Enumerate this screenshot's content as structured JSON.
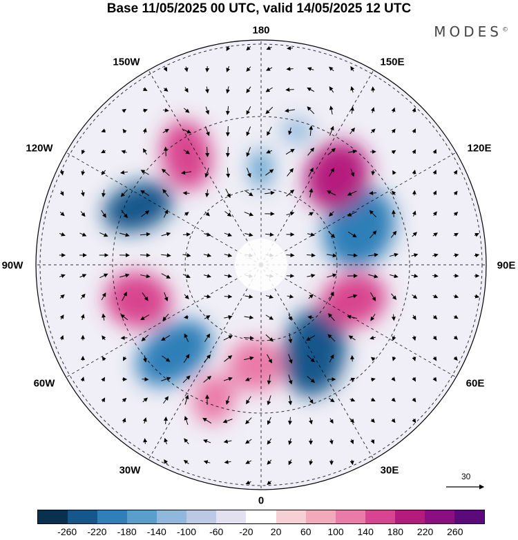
{
  "title": "Base 11/05/2025 00 UTC, valid 14/05/2025 12 UTC",
  "brand": "MODES",
  "brand_mark": "©",
  "longitude_labels": {
    "top": "180",
    "bottom": "0",
    "left": "90W",
    "right": "90E",
    "upper_left": "150W",
    "upper_right": "150E",
    "left_upper": "120W",
    "right_upper": "120E",
    "left_lower": "60W",
    "right_lower": "60E",
    "lower_left": "30W",
    "lower_right": "30E"
  },
  "reference_vector": {
    "label": "30"
  },
  "colorbar": {
    "colors": [
      "#08304f",
      "#15578a",
      "#2f7fb8",
      "#5a9fcc",
      "#8fb8dc",
      "#bcc9e4",
      "#e3e1f0",
      "#ffffff",
      "#f7d0d6",
      "#f2a9bc",
      "#ea7aa8",
      "#d8448f",
      "#b51a7e",
      "#8b0f80",
      "#5b0a79"
    ],
    "tick_labels": [
      "-260",
      "-220",
      "-180",
      "-140",
      "-100",
      "-60",
      "-20",
      "20",
      "60",
      "100",
      "140",
      "180",
      "220",
      "260"
    ]
  },
  "anomaly_centers": [
    {
      "value": -260,
      "color": "#15578a"
    },
    {
      "value": -220,
      "color": "#2f7fb8"
    },
    {
      "value": -260,
      "color": "#15578a"
    },
    {
      "value": -220,
      "color": "#2f7fb8"
    },
    {
      "value": -140,
      "color": "#5a9fcc"
    },
    {
      "value": -100,
      "color": "#8fb8dc"
    },
    {
      "value": 220,
      "color": "#b51a7e"
    },
    {
      "value": 180,
      "color": "#d8448f"
    },
    {
      "value": 180,
      "color": "#d8448f"
    },
    {
      "value": 180,
      "color": "#d8448f"
    },
    {
      "value": 140,
      "color": "#ea7aa8"
    },
    {
      "value": 140,
      "color": "#ea7aa8"
    }
  ]
}
